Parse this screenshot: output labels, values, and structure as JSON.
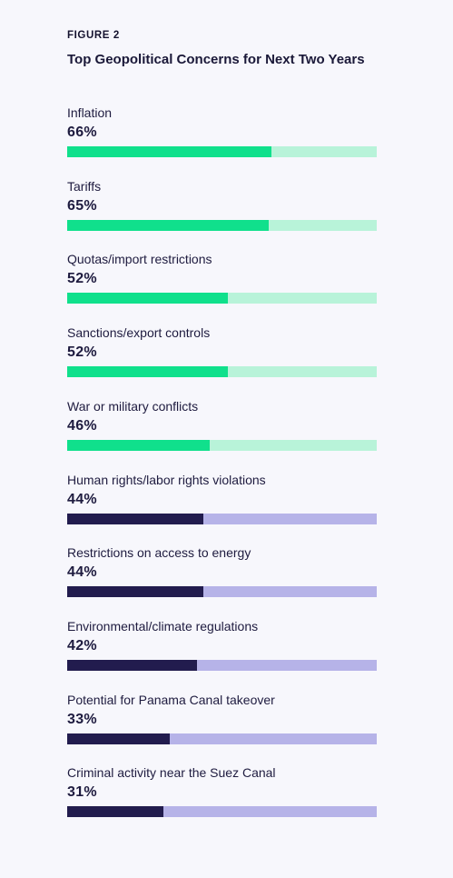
{
  "figure_label": "FIGURE 2",
  "chart_data": {
    "type": "bar",
    "orientation": "horizontal",
    "title": "Top Geopolitical Concerns for Next Two Years",
    "xlim": [
      0,
      100
    ],
    "unit": "%",
    "categories": [
      "Inflation",
      "Tariffs",
      "Quotas/import restrictions",
      "Sanctions/export controls",
      "War or military conflicts",
      "Human rights/labor rights violations",
      "Restrictions on access to energy",
      "Environmental/climate regulations",
      "Potential for Panama Canal takeover",
      "Criminal activity near the Suez Canal"
    ],
    "values": [
      66,
      65,
      52,
      52,
      46,
      44,
      44,
      42,
      33,
      31
    ],
    "value_labels": [
      "66%",
      "65%",
      "52%",
      "52%",
      "46%",
      "44%",
      "44%",
      "42%",
      "33%",
      "31%"
    ],
    "bar_color_groups": [
      "green",
      "green",
      "green",
      "green",
      "green",
      "navy",
      "navy",
      "navy",
      "navy",
      "navy"
    ],
    "colors": {
      "green_fill": "#10e08c",
      "green_track": "#b8f3d9",
      "navy_fill": "#221c4e",
      "navy_track": "#b6b3e8"
    }
  }
}
